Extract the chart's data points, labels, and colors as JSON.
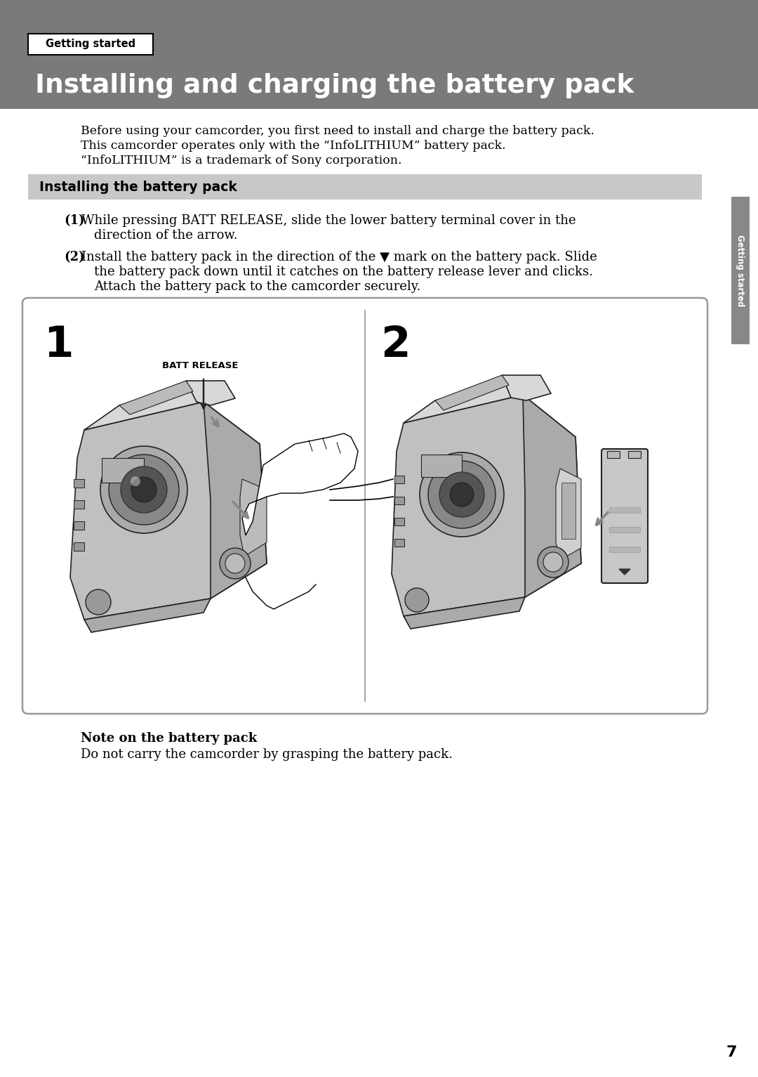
{
  "page_bg": "#ffffff",
  "header_bg": "#7a7a7a",
  "header_tab_bg": "#ffffff",
  "header_tab_text": "Getting started",
  "header_tab_border": "#000000",
  "header_title": "Installing and charging the battery pack",
  "header_title_color": "#ffffff",
  "subheader_bg": "#c8c8c8",
  "subheader_text": "Installing the battery pack",
  "body_text_1": "Before using your camcorder, you first need to install and charge the battery pack.",
  "body_text_2": "This camcorder operates only with the “InfoLITHIUM” battery pack.",
  "body_text_3": "“InfoLITHIUM” is a trademark of Sony corporation.",
  "note_bold": "Note on the battery pack",
  "note_text": "Do not carry the camcorder by grasping the battery pack.",
  "side_label": "Getting started",
  "page_number": "7",
  "cam_fill": "#c0c0c0",
  "cam_fill2": "#d8d8d8",
  "cam_edge": "#222222",
  "arrow_fill": "#888888"
}
